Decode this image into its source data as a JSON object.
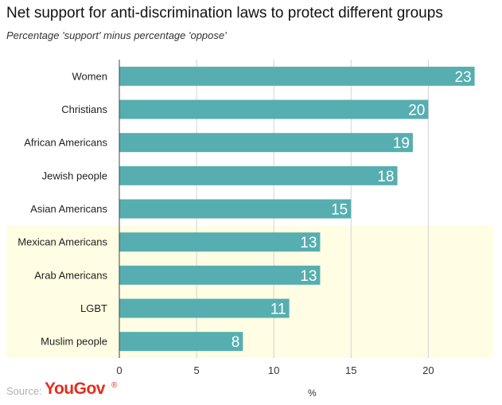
{
  "header": {
    "title": "Net support for anti-discrimination laws to protect different groups",
    "subtitle": "Percentage 'support' minus percentage 'oppose'"
  },
  "footer": {
    "source_label": "Source:",
    "brand": "YouGov",
    "brand_mark": "®",
    "unit": "%"
  },
  "colors": {
    "bar": "#56aeb0",
    "highlight": "#fffde3",
    "grid": "#d3d3d3",
    "axis": "#444444",
    "bar_label": "#ffffff"
  },
  "chart_data": {
    "type": "bar",
    "orientation": "horizontal",
    "title": "Net support for anti-discrimination laws to protect different groups",
    "subtitle": "Percentage 'support' minus percentage 'oppose'",
    "xlabel": "%",
    "categories": [
      "Women",
      "Christians",
      "African Americans",
      "Jewish people",
      "Asian Americans",
      "Mexican Americans",
      "Arab Americans",
      "LGBT",
      "Muslim people"
    ],
    "values": [
      23,
      20,
      19,
      18,
      15,
      13,
      13,
      11,
      8
    ],
    "highlighted_categories": [
      "Mexican Americans",
      "Arab Americans",
      "LGBT",
      "Muslim people"
    ],
    "xlim": [
      0,
      24
    ],
    "xticks": [
      0,
      5,
      10,
      15,
      20
    ],
    "grid": true
  }
}
